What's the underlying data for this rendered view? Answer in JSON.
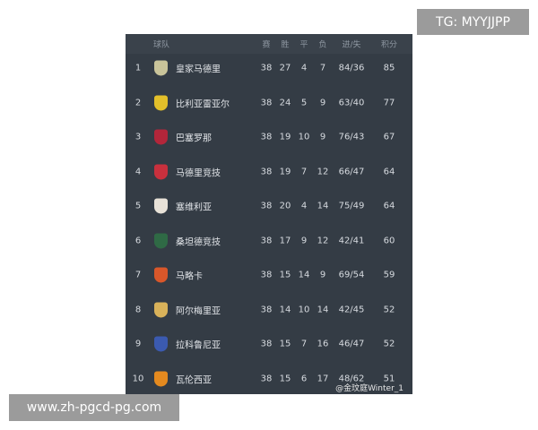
{
  "header": {
    "team": "球队",
    "played": "赛",
    "won": "胜",
    "drawn": "平",
    "lost": "负",
    "goals": "进/失",
    "points": "积分"
  },
  "rows": [
    {
      "rank": "1",
      "team": "皇家马德里",
      "p": "38",
      "w": "27",
      "d": "4",
      "l": "7",
      "g": "84/36",
      "pts": "85",
      "crest": "#c9c49a"
    },
    {
      "rank": "2",
      "team": "比利亚雷亚尔",
      "p": "38",
      "w": "24",
      "d": "5",
      "l": "9",
      "g": "63/40",
      "pts": "77",
      "crest": "#e3c02a"
    },
    {
      "rank": "3",
      "team": "巴塞罗那",
      "p": "38",
      "w": "19",
      "d": "10",
      "l": "9",
      "g": "76/43",
      "pts": "67",
      "crest": "#b3263a"
    },
    {
      "rank": "4",
      "team": "马德里竞技",
      "p": "38",
      "w": "19",
      "d": "7",
      "l": "12",
      "g": "66/47",
      "pts": "64",
      "crest": "#c8303d"
    },
    {
      "rank": "5",
      "team": "塞维利亚",
      "p": "38",
      "w": "20",
      "d": "4",
      "l": "14",
      "g": "75/49",
      "pts": "64",
      "crest": "#e8e2d8"
    },
    {
      "rank": "6",
      "team": "桑坦德竞技",
      "p": "38",
      "w": "17",
      "d": "9",
      "l": "12",
      "g": "42/41",
      "pts": "60",
      "crest": "#2f6a45"
    },
    {
      "rank": "7",
      "team": "马略卡",
      "p": "38",
      "w": "15",
      "d": "14",
      "l": "9",
      "g": "69/54",
      "pts": "59",
      "crest": "#d9572a"
    },
    {
      "rank": "8",
      "team": "阿尔梅里亚",
      "p": "38",
      "w": "14",
      "d": "10",
      "l": "14",
      "g": "42/45",
      "pts": "52",
      "crest": "#d9b25a"
    },
    {
      "rank": "9",
      "team": "拉科鲁尼亚",
      "p": "38",
      "w": "15",
      "d": "7",
      "l": "16",
      "g": "46/47",
      "pts": "52",
      "crest": "#3b5ab0"
    },
    {
      "rank": "10",
      "team": "瓦伦西亚",
      "p": "38",
      "w": "15",
      "d": "6",
      "l": "17",
      "g": "48/62",
      "pts": "51",
      "crest": "#e58a1f"
    }
  ],
  "watermark": "@金玟庭Winter_1",
  "tag_top": "TG: MYYJJPP",
  "tag_bottom": "www.zh-pgcd-pg.com"
}
